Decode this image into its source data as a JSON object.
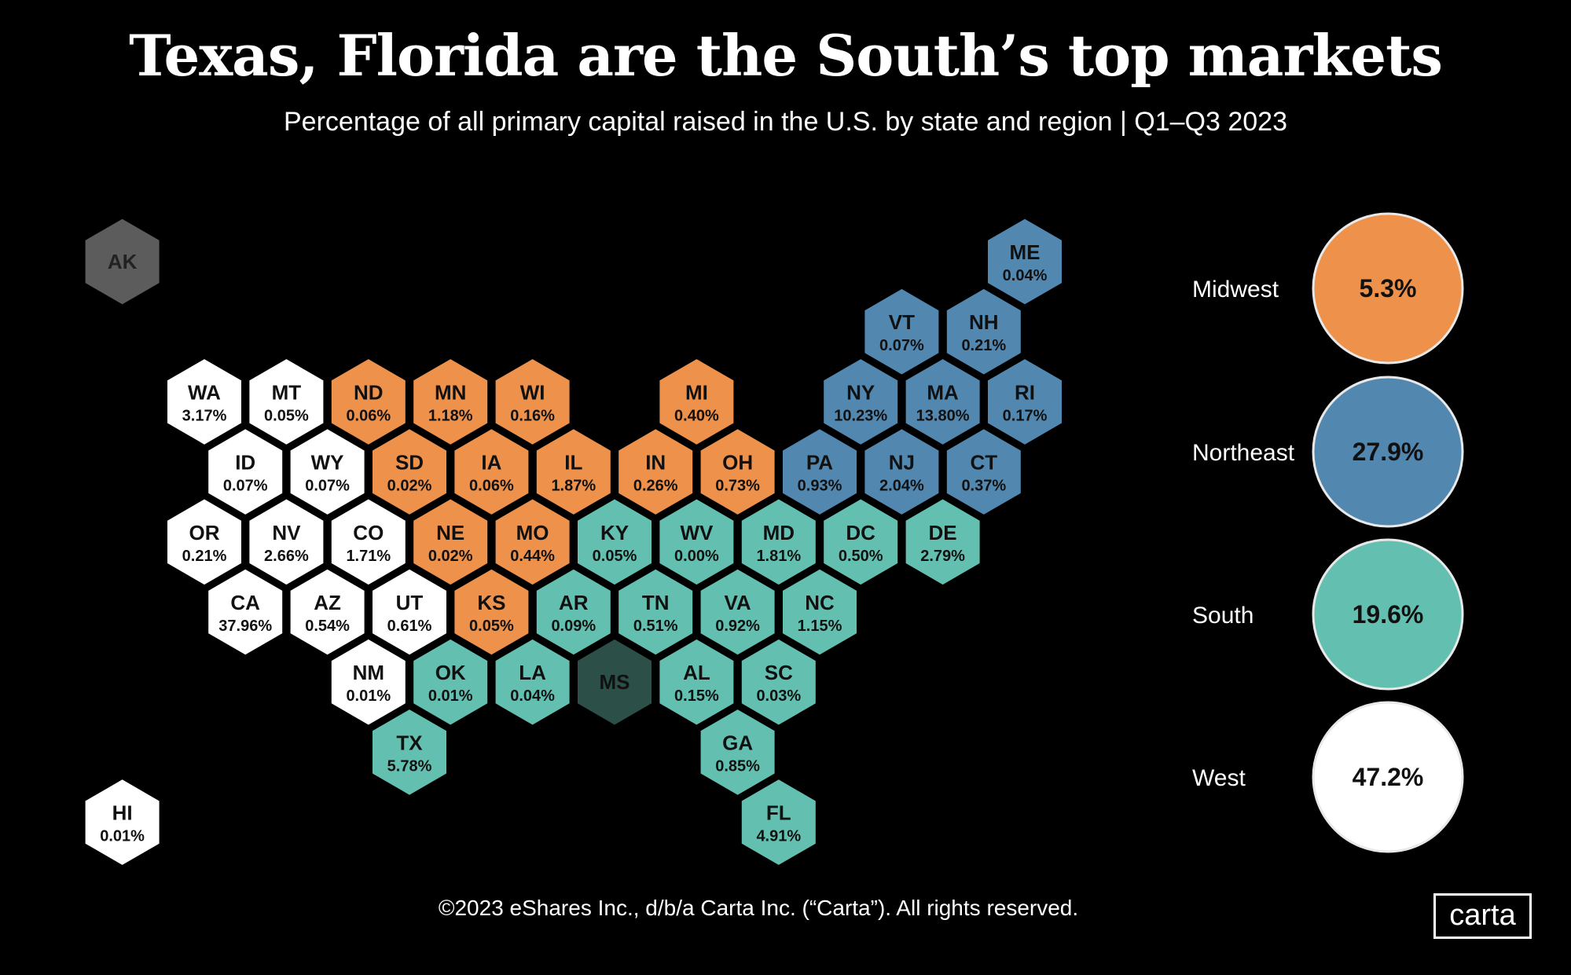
{
  "title": "Texas, Florida are the South’s top markets",
  "subtitle": "Percentage of all primary capital raised in the U.S. by state and region | Q1–Q3 2023",
  "footer": "©2023 eShares Inc., d/b/a Carta Inc. (“Carta”). All rights reserved.",
  "logo": "carta",
  "colors": {
    "Midwest": "#EE914A",
    "Northeast": "#5287B0",
    "South": "#63C0B0",
    "West": "#FFFFFF",
    "no_data_south": "#2C4F48",
    "no_data_other": "#5C5C5C",
    "background": "#000000"
  },
  "chart_data": {
    "type": "hex-tile-map",
    "unit": "%",
    "states": [
      {
        "abbr": "AK",
        "value": null,
        "region": "West",
        "col": -2,
        "row": 0
      },
      {
        "abbr": "ME",
        "value": "0.04%",
        "region": "Northeast",
        "col": 20,
        "row": 0
      },
      {
        "abbr": "VT",
        "value": "0.07%",
        "region": "Northeast",
        "col": 17,
        "row": 1
      },
      {
        "abbr": "NH",
        "value": "0.21%",
        "region": "Northeast",
        "col": 19,
        "row": 1
      },
      {
        "abbr": "WA",
        "value": "3.17%",
        "region": "West",
        "col": 0,
        "row": 2
      },
      {
        "abbr": "MT",
        "value": "0.05%",
        "region": "West",
        "col": 2,
        "row": 2
      },
      {
        "abbr": "ND",
        "value": "0.06%",
        "region": "Midwest",
        "col": 4,
        "row": 2
      },
      {
        "abbr": "MN",
        "value": "1.18%",
        "region": "Midwest",
        "col": 6,
        "row": 2
      },
      {
        "abbr": "WI",
        "value": "0.16%",
        "region": "Midwest",
        "col": 8,
        "row": 2
      },
      {
        "abbr": "MI",
        "value": "0.40%",
        "region": "Midwest",
        "col": 12,
        "row": 2
      },
      {
        "abbr": "NY",
        "value": "10.23%",
        "region": "Northeast",
        "col": 16,
        "row": 2
      },
      {
        "abbr": "MA",
        "value": "13.80%",
        "region": "Northeast",
        "col": 18,
        "row": 2
      },
      {
        "abbr": "RI",
        "value": "0.17%",
        "region": "Northeast",
        "col": 20,
        "row": 2
      },
      {
        "abbr": "ID",
        "value": "0.07%",
        "region": "West",
        "col": 1,
        "row": 3
      },
      {
        "abbr": "WY",
        "value": "0.07%",
        "region": "West",
        "col": 3,
        "row": 3
      },
      {
        "abbr": "SD",
        "value": "0.02%",
        "region": "Midwest",
        "col": 5,
        "row": 3
      },
      {
        "abbr": "IA",
        "value": "0.06%",
        "region": "Midwest",
        "col": 7,
        "row": 3
      },
      {
        "abbr": "IL",
        "value": "1.87%",
        "region": "Midwest",
        "col": 9,
        "row": 3
      },
      {
        "abbr": "IN",
        "value": "0.26%",
        "region": "Midwest",
        "col": 11,
        "row": 3
      },
      {
        "abbr": "OH",
        "value": "0.73%",
        "region": "Midwest",
        "col": 13,
        "row": 3
      },
      {
        "abbr": "PA",
        "value": "0.93%",
        "region": "Northeast",
        "col": 15,
        "row": 3
      },
      {
        "abbr": "NJ",
        "value": "2.04%",
        "region": "Northeast",
        "col": 17,
        "row": 3
      },
      {
        "abbr": "CT",
        "value": "0.37%",
        "region": "Northeast",
        "col": 19,
        "row": 3
      },
      {
        "abbr": "OR",
        "value": "0.21%",
        "region": "West",
        "col": 0,
        "row": 4
      },
      {
        "abbr": "NV",
        "value": "2.66%",
        "region": "West",
        "col": 2,
        "row": 4
      },
      {
        "abbr": "CO",
        "value": "1.71%",
        "region": "West",
        "col": 4,
        "row": 4
      },
      {
        "abbr": "NE",
        "value": "0.02%",
        "region": "Midwest",
        "col": 6,
        "row": 4
      },
      {
        "abbr": "MO",
        "value": "0.44%",
        "region": "Midwest",
        "col": 8,
        "row": 4
      },
      {
        "abbr": "KY",
        "value": "0.05%",
        "region": "South",
        "col": 10,
        "row": 4
      },
      {
        "abbr": "WV",
        "value": "0.00%",
        "region": "South",
        "col": 12,
        "row": 4
      },
      {
        "abbr": "MD",
        "value": "1.81%",
        "region": "South",
        "col": 14,
        "row": 4
      },
      {
        "abbr": "DC",
        "value": "0.50%",
        "region": "South",
        "col": 16,
        "row": 4
      },
      {
        "abbr": "DE",
        "value": "2.79%",
        "region": "South",
        "col": 18,
        "row": 4
      },
      {
        "abbr": "CA",
        "value": "37.96%",
        "region": "West",
        "col": 1,
        "row": 5
      },
      {
        "abbr": "AZ",
        "value": "0.54%",
        "region": "West",
        "col": 3,
        "row": 5
      },
      {
        "abbr": "UT",
        "value": "0.61%",
        "region": "West",
        "col": 5,
        "row": 5
      },
      {
        "abbr": "KS",
        "value": "0.05%",
        "region": "Midwest",
        "col": 7,
        "row": 5
      },
      {
        "abbr": "AR",
        "value": "0.09%",
        "region": "South",
        "col": 9,
        "row": 5
      },
      {
        "abbr": "TN",
        "value": "0.51%",
        "region": "South",
        "col": 11,
        "row": 5
      },
      {
        "abbr": "VA",
        "value": "0.92%",
        "region": "South",
        "col": 13,
        "row": 5
      },
      {
        "abbr": "NC",
        "value": "1.15%",
        "region": "South",
        "col": 15,
        "row": 5
      },
      {
        "abbr": "NM",
        "value": "0.01%",
        "region": "West",
        "col": 4,
        "row": 6
      },
      {
        "abbr": "OK",
        "value": "0.01%",
        "region": "South",
        "col": 6,
        "row": 6
      },
      {
        "abbr": "LA",
        "value": "0.04%",
        "region": "South",
        "col": 8,
        "row": 6
      },
      {
        "abbr": "MS",
        "value": null,
        "region": "South",
        "col": 10,
        "row": 6
      },
      {
        "abbr": "AL",
        "value": "0.15%",
        "region": "South",
        "col": 12,
        "row": 6
      },
      {
        "abbr": "SC",
        "value": "0.03%",
        "region": "South",
        "col": 14,
        "row": 6
      },
      {
        "abbr": "TX",
        "value": "5.78%",
        "region": "South",
        "col": 5,
        "row": 7
      },
      {
        "abbr": "GA",
        "value": "0.85%",
        "region": "South",
        "col": 13,
        "row": 7
      },
      {
        "abbr": "HI",
        "value": "0.01%",
        "region": "West",
        "col": -2,
        "row": 8
      },
      {
        "abbr": "FL",
        "value": "4.91%",
        "region": "South",
        "col": 14,
        "row": 8
      }
    ],
    "regions": [
      {
        "name": "Midwest",
        "value": "5.3%"
      },
      {
        "name": "Northeast",
        "value": "27.9%"
      },
      {
        "name": "South",
        "value": "19.6%"
      },
      {
        "name": "West",
        "value": "47.2%"
      }
    ]
  }
}
